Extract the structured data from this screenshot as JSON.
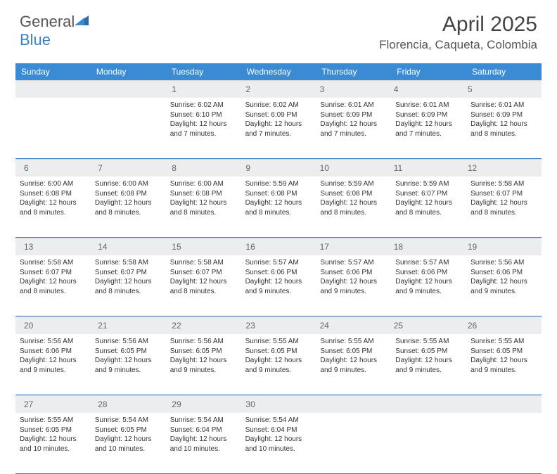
{
  "logo": {
    "word1": "General",
    "word2": "Blue"
  },
  "title": "April 2025",
  "location": "Florencia, Caqueta, Colombia",
  "colors": {
    "header_bg": "#3b8bd4",
    "header_text": "#ffffff",
    "daynum_bg": "#ecedee",
    "border": "#3b7fc4",
    "text": "#333333"
  },
  "day_names": [
    "Sunday",
    "Monday",
    "Tuesday",
    "Wednesday",
    "Thursday",
    "Friday",
    "Saturday"
  ],
  "weeks": [
    [
      null,
      null,
      {
        "n": "1",
        "sr": "6:02 AM",
        "ss": "6:10 PM",
        "dl": "12 hours and 7 minutes."
      },
      {
        "n": "2",
        "sr": "6:02 AM",
        "ss": "6:09 PM",
        "dl": "12 hours and 7 minutes."
      },
      {
        "n": "3",
        "sr": "6:01 AM",
        "ss": "6:09 PM",
        "dl": "12 hours and 7 minutes."
      },
      {
        "n": "4",
        "sr": "6:01 AM",
        "ss": "6:09 PM",
        "dl": "12 hours and 7 minutes."
      },
      {
        "n": "5",
        "sr": "6:01 AM",
        "ss": "6:09 PM",
        "dl": "12 hours and 8 minutes."
      }
    ],
    [
      {
        "n": "6",
        "sr": "6:00 AM",
        "ss": "6:08 PM",
        "dl": "12 hours and 8 minutes."
      },
      {
        "n": "7",
        "sr": "6:00 AM",
        "ss": "6:08 PM",
        "dl": "12 hours and 8 minutes."
      },
      {
        "n": "8",
        "sr": "6:00 AM",
        "ss": "6:08 PM",
        "dl": "12 hours and 8 minutes."
      },
      {
        "n": "9",
        "sr": "5:59 AM",
        "ss": "6:08 PM",
        "dl": "12 hours and 8 minutes."
      },
      {
        "n": "10",
        "sr": "5:59 AM",
        "ss": "6:08 PM",
        "dl": "12 hours and 8 minutes."
      },
      {
        "n": "11",
        "sr": "5:59 AM",
        "ss": "6:07 PM",
        "dl": "12 hours and 8 minutes."
      },
      {
        "n": "12",
        "sr": "5:58 AM",
        "ss": "6:07 PM",
        "dl": "12 hours and 8 minutes."
      }
    ],
    [
      {
        "n": "13",
        "sr": "5:58 AM",
        "ss": "6:07 PM",
        "dl": "12 hours and 8 minutes."
      },
      {
        "n": "14",
        "sr": "5:58 AM",
        "ss": "6:07 PM",
        "dl": "12 hours and 8 minutes."
      },
      {
        "n": "15",
        "sr": "5:58 AM",
        "ss": "6:07 PM",
        "dl": "12 hours and 8 minutes."
      },
      {
        "n": "16",
        "sr": "5:57 AM",
        "ss": "6:06 PM",
        "dl": "12 hours and 9 minutes."
      },
      {
        "n": "17",
        "sr": "5:57 AM",
        "ss": "6:06 PM",
        "dl": "12 hours and 9 minutes."
      },
      {
        "n": "18",
        "sr": "5:57 AM",
        "ss": "6:06 PM",
        "dl": "12 hours and 9 minutes."
      },
      {
        "n": "19",
        "sr": "5:56 AM",
        "ss": "6:06 PM",
        "dl": "12 hours and 9 minutes."
      }
    ],
    [
      {
        "n": "20",
        "sr": "5:56 AM",
        "ss": "6:06 PM",
        "dl": "12 hours and 9 minutes."
      },
      {
        "n": "21",
        "sr": "5:56 AM",
        "ss": "6:05 PM",
        "dl": "12 hours and 9 minutes."
      },
      {
        "n": "22",
        "sr": "5:56 AM",
        "ss": "6:05 PM",
        "dl": "12 hours and 9 minutes."
      },
      {
        "n": "23",
        "sr": "5:55 AM",
        "ss": "6:05 PM",
        "dl": "12 hours and 9 minutes."
      },
      {
        "n": "24",
        "sr": "5:55 AM",
        "ss": "6:05 PM",
        "dl": "12 hours and 9 minutes."
      },
      {
        "n": "25",
        "sr": "5:55 AM",
        "ss": "6:05 PM",
        "dl": "12 hours and 9 minutes."
      },
      {
        "n": "26",
        "sr": "5:55 AM",
        "ss": "6:05 PM",
        "dl": "12 hours and 9 minutes."
      }
    ],
    [
      {
        "n": "27",
        "sr": "5:55 AM",
        "ss": "6:05 PM",
        "dl": "12 hours and 10 minutes."
      },
      {
        "n": "28",
        "sr": "5:54 AM",
        "ss": "6:05 PM",
        "dl": "12 hours and 10 minutes."
      },
      {
        "n": "29",
        "sr": "5:54 AM",
        "ss": "6:04 PM",
        "dl": "12 hours and 10 minutes."
      },
      {
        "n": "30",
        "sr": "5:54 AM",
        "ss": "6:04 PM",
        "dl": "12 hours and 10 minutes."
      },
      null,
      null,
      null
    ]
  ],
  "labels": {
    "sunrise": "Sunrise:",
    "sunset": "Sunset:",
    "daylight": "Daylight:"
  }
}
